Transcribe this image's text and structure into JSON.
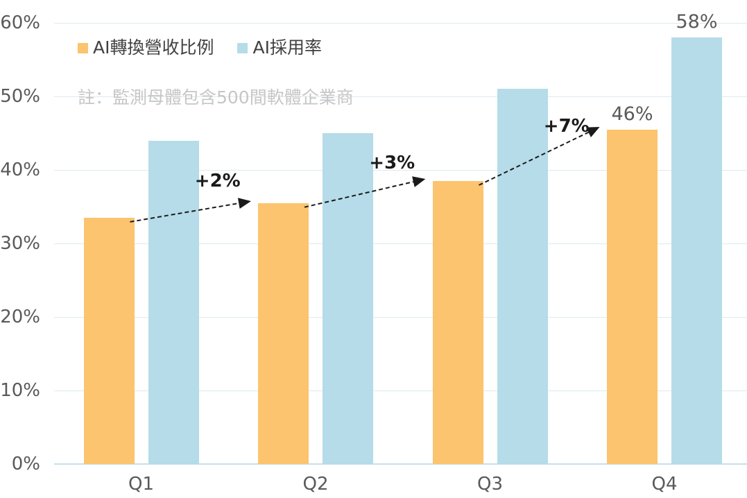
{
  "chart_data": {
    "type": "bar",
    "title": "",
    "categories": [
      "Q1",
      "Q2",
      "Q3",
      "Q4"
    ],
    "series": [
      {
        "name": "AI轉換營收比例",
        "color": "#FCC46E",
        "values": [
          33.5,
          35.5,
          38.5,
          45.5
        ]
      },
      {
        "name": "AI採用率",
        "color": "#B5DCE8",
        "values": [
          44,
          45,
          51,
          58
        ]
      }
    ],
    "ylim": [
      0,
      60
    ],
    "yticks": [
      "0%",
      "10%",
      "20%",
      "30%",
      "40%",
      "50%",
      "60%"
    ],
    "grid": true,
    "legend_position": "top-left",
    "note": "註：監測母體包含500間軟體企業商",
    "bar_labels": [
      {
        "series": 0,
        "category_index": 3,
        "text": "46%"
      },
      {
        "series": 1,
        "category_index": 3,
        "text": "58%"
      }
    ],
    "annotations": [
      {
        "text": "+2%",
        "series": 0,
        "from_category": 0,
        "to_category": 1
      },
      {
        "text": "+3%",
        "series": 0,
        "from_category": 1,
        "to_category": 2
      },
      {
        "text": "+7%",
        "series": 0,
        "from_category": 2,
        "to_category": 3
      }
    ],
    "colors": {
      "grid": "#DDEAF0",
      "axis": "#C7DFE9",
      "tick_text": "#595959",
      "legend_text": "#404040",
      "note_text": "#C6C6C6",
      "annotation_text": "#1A1A1A",
      "bar_label_text": "#595959"
    }
  }
}
